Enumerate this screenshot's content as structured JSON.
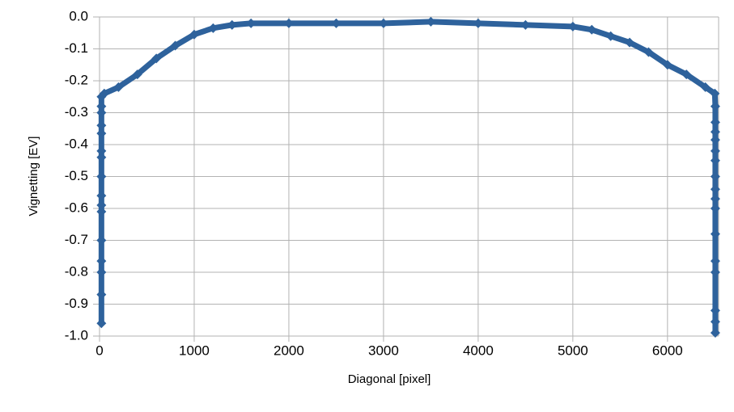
{
  "chart_data": {
    "type": "line",
    "x_label": "Diagonal [pixel]",
    "y_label": "Vignetting [EV]",
    "color": "#2e629c",
    "grid": true,
    "xlim": [
      0,
      6540
    ],
    "xticks": [
      0,
      1000,
      2000,
      3000,
      4000,
      5000,
      6000
    ],
    "ylim": [
      -1,
      0
    ],
    "yticks": [
      {
        "value": 0,
        "label": "0.0"
      },
      {
        "value": -0.1,
        "label": "-0.1"
      },
      {
        "value": -0.2,
        "label": "-0.2"
      },
      {
        "value": -0.3,
        "label": "-0.3"
      },
      {
        "value": -0.4,
        "label": "-0.4"
      },
      {
        "value": -0.5,
        "label": "-0.5"
      },
      {
        "value": -0.6,
        "label": "-0.6"
      },
      {
        "value": -0.7,
        "label": "-0.7"
      },
      {
        "value": -0.8,
        "label": "-0.8"
      },
      {
        "value": -0.9,
        "label": "-0.9"
      },
      {
        "value": -1,
        "label": "-1.0"
      }
    ],
    "x": [
      20,
      20,
      20,
      20,
      20,
      20,
      20,
      20,
      20,
      20,
      20,
      20,
      20,
      20,
      20,
      20,
      50,
      200,
      400,
      600,
      800,
      1000,
      1200,
      1400,
      1600,
      2000,
      2500,
      3000,
      3500,
      4000,
      4500,
      5000,
      5200,
      5400,
      5600,
      5800,
      6000,
      6200,
      6400,
      6500,
      6505,
      6505,
      6505,
      6505,
      6505,
      6505,
      6505,
      6505,
      6505,
      6505,
      6505,
      6505,
      6505,
      6505,
      6505,
      6505
    ],
    "values": [
      -0.96,
      -0.87,
      -0.8,
      -0.765,
      -0.7,
      -0.61,
      -0.59,
      -0.56,
      -0.5,
      -0.44,
      -0.42,
      -0.365,
      -0.34,
      -0.3,
      -0.28,
      -0.25,
      -0.24,
      -0.22,
      -0.18,
      -0.13,
      -0.09,
      -0.055,
      -0.035,
      -0.025,
      -0.02,
      -0.02,
      -0.02,
      -0.02,
      -0.015,
      -0.02,
      -0.025,
      -0.03,
      -0.04,
      -0.06,
      -0.08,
      -0.11,
      -0.15,
      -0.18,
      -0.22,
      -0.24,
      -0.28,
      -0.33,
      -0.36,
      -0.385,
      -0.42,
      -0.45,
      -0.5,
      -0.54,
      -0.57,
      -0.6,
      -0.68,
      -0.765,
      -0.8,
      -0.92,
      -0.955,
      -0.99
    ]
  }
}
